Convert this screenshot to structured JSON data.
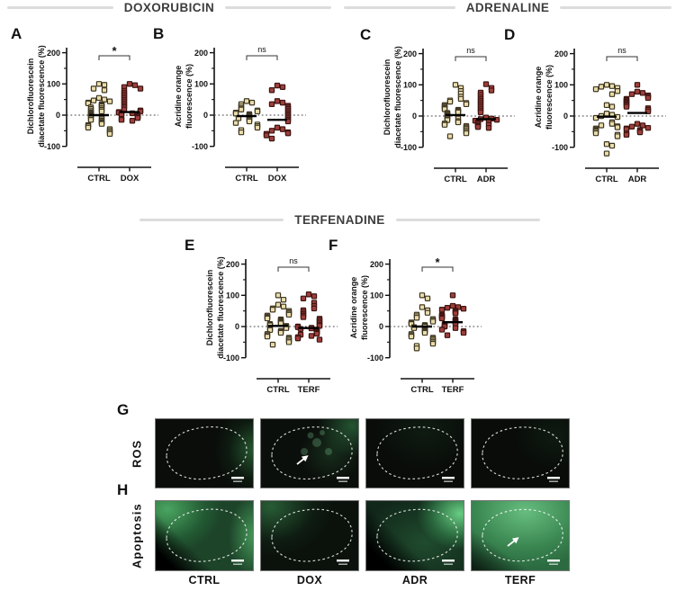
{
  "figure": {
    "sections": [
      {
        "title": "DOXORUBICIN"
      },
      {
        "title": "ADRENALINE"
      },
      {
        "title": "TERFENADINE"
      }
    ],
    "colors": {
      "ctrl_fill": "#e9dcab",
      "ctrl_stroke": "#3f3722",
      "treat_fill": "#9e3e3a",
      "treat_stroke": "#3f1512",
      "title_color": "#3d3d3d",
      "rule_color": "#dcdcdc",
      "mean_bar": "#000000"
    }
  },
  "chart_data": [
    {
      "type": "scatter",
      "panel_letter": "A",
      "section": "DOXORUBICIN",
      "ylabel_lines": [
        "Dichlorofluorescein",
        "diacetate fluorescence (%)"
      ],
      "yticks": [
        200,
        100,
        0,
        -100
      ],
      "minor_ticks": [
        150,
        50,
        -50
      ],
      "ylim": [
        -130,
        220
      ],
      "significance": "*",
      "groups": [
        {
          "label": "CTRL",
          "color_key": "ctrl",
          "mean": 0,
          "values": [
            100,
            97,
            85,
            80,
            55,
            50,
            47,
            44,
            40,
            38,
            35,
            33,
            30,
            28,
            25,
            22,
            20,
            17,
            15,
            12,
            10,
            8,
            5,
            3,
            0,
            -2,
            -5,
            -8,
            -10,
            -13,
            -15,
            -18,
            -22,
            -25,
            -28,
            -32,
            -35,
            -40,
            -45,
            -50,
            -55,
            -60
          ]
        },
        {
          "label": "DOX",
          "color_key": "treat",
          "mean": 10,
          "values": [
            100,
            96,
            90,
            85,
            78,
            72,
            66,
            60,
            54,
            48,
            42,
            36,
            30,
            25,
            18,
            15,
            12,
            10,
            8,
            6,
            4,
            2,
            0,
            -2,
            -4,
            -6,
            -9,
            -12,
            -15,
            -18
          ]
        }
      ]
    },
    {
      "type": "scatter",
      "panel_letter": "B",
      "section": "DOXORUBICIN",
      "ylabel_lines": [
        "Acridine orange",
        "fluorescence (%)"
      ],
      "yticks": [
        200,
        100,
        0,
        -100
      ],
      "minor_ticks": [
        150,
        50,
        -50
      ],
      "ylim": [
        -130,
        220
      ],
      "significance": "ns",
      "groups": [
        {
          "label": "CTRL",
          "color_key": "ctrl",
          "mean": -3,
          "values": [
            45,
            40,
            35,
            28,
            22,
            18,
            15,
            12,
            8,
            5,
            3,
            0,
            -2,
            -5,
            -8,
            -10,
            -13,
            -16,
            -20,
            -25,
            -30,
            -35,
            -40,
            -48,
            -55
          ]
        },
        {
          "label": "DOX",
          "color_key": "treat",
          "mean": -15,
          "values": [
            95,
            90,
            80,
            45,
            40,
            35,
            30,
            25,
            20,
            15,
            10,
            5,
            0,
            -5,
            -10,
            -15,
            -20,
            -40,
            -45,
            -50,
            -55,
            -58,
            -60,
            -65,
            -75
          ]
        }
      ]
    },
    {
      "type": "scatter",
      "panel_letter": "C",
      "section": "ADRENALINE",
      "ylabel_lines": [
        "Dichlorofluorescein",
        "diacetate fluorescence (%)"
      ],
      "yticks": [
        200,
        100,
        0,
        -100
      ],
      "minor_ticks": [
        150,
        50,
        -50
      ],
      "ylim": [
        -130,
        220
      ],
      "significance": "ns",
      "groups": [
        {
          "label": "CTRL",
          "color_key": "ctrl",
          "mean": 3,
          "values": [
            100,
            90,
            80,
            72,
            62,
            55,
            50,
            46,
            42,
            38,
            35,
            32,
            28,
            25,
            22,
            20,
            17,
            15,
            12,
            10,
            8,
            5,
            2,
            0,
            -3,
            -5,
            -8,
            -10,
            -13,
            -16,
            -20,
            -24,
            -28,
            -32,
            -36,
            -40,
            -45,
            -50,
            -55,
            -65
          ]
        },
        {
          "label": "ADR",
          "color_key": "treat",
          "mean": -10,
          "values": [
            102,
            90,
            82,
            75,
            68,
            60,
            54,
            48,
            42,
            36,
            30,
            24,
            18,
            12,
            -5,
            -8,
            -10,
            -12,
            -15,
            -18,
            -20,
            -22,
            -25,
            -28,
            -30,
            -32,
            -35,
            -38
          ]
        }
      ]
    },
    {
      "type": "scatter",
      "panel_letter": "D",
      "section": "ADRENALINE",
      "ylabel_lines": [
        "Acridine orange",
        "fluorescence (%)"
      ],
      "yticks": [
        200,
        100,
        0,
        -100
      ],
      "minor_ticks": [
        150,
        50,
        -50
      ],
      "ylim": [
        -130,
        220
      ],
      "significance": "ns",
      "groups": [
        {
          "label": "CTRL",
          "color_key": "ctrl",
          "mean": -2,
          "values": [
            100,
            96,
            94,
            90,
            86,
            80,
            70,
            35,
            30,
            8,
            4,
            0,
            -3,
            -6,
            -20,
            -25,
            -30,
            -33,
            -36,
            -40,
            -43,
            -46,
            -50,
            -55,
            -60,
            -65,
            -90,
            -95,
            -120
          ]
        },
        {
          "label": "ADR",
          "color_key": "treat",
          "mean": 10,
          "values": [
            100,
            78,
            74,
            70,
            66,
            62,
            58,
            55,
            52,
            48,
            45,
            42,
            38,
            35,
            30,
            25,
            20,
            15,
            -25,
            -30,
            -34,
            -38,
            -40,
            -42,
            -45,
            -48,
            -52,
            -56,
            -60
          ]
        }
      ]
    },
    {
      "type": "scatter",
      "panel_letter": "E",
      "section": "TERFENADINE",
      "ylabel_lines": [
        "Dichlorofluorescein",
        "diacetate fluorescence (%)"
      ],
      "yticks": [
        200,
        100,
        0,
        -100
      ],
      "minor_ticks": [
        150,
        50,
        -50
      ],
      "ylim": [
        -130,
        220
      ],
      "significance": "ns",
      "groups": [
        {
          "label": "CTRL",
          "color_key": "ctrl",
          "mean": 2,
          "values": [
            100,
            86,
            70,
            64,
            58,
            54,
            50,
            46,
            42,
            38,
            35,
            32,
            29,
            26,
            23,
            20,
            17,
            14,
            12,
            10,
            8,
            6,
            4,
            2,
            0,
            -2,
            -5,
            -8,
            -11,
            -14,
            -17,
            -20,
            -24,
            -28,
            -32,
            -36,
            -40,
            -45,
            -50,
            -58
          ]
        },
        {
          "label": "TERF",
          "color_key": "treat",
          "mean": -5,
          "values": [
            103,
            97,
            90,
            76,
            66,
            58,
            52,
            46,
            40,
            35,
            30,
            25,
            20,
            15,
            10,
            5,
            2,
            0,
            -2,
            -4,
            -6,
            -8,
            -10,
            -12,
            -14,
            -16,
            -18,
            -20,
            -23,
            -26,
            -30,
            -34,
            -38,
            -42
          ]
        }
      ]
    },
    {
      "type": "scatter",
      "panel_letter": "F",
      "section": "TERFENADINE",
      "ylabel_lines": [
        "Acridine orange",
        "fluorescence (%)"
      ],
      "yticks": [
        200,
        100,
        0,
        -100
      ],
      "minor_ticks": [
        150,
        50,
        -50
      ],
      "ylim": [
        -130,
        220
      ],
      "significance": "*",
      "groups": [
        {
          "label": "CTRL",
          "color_key": "ctrl",
          "mean": 0,
          "values": [
            100,
            90,
            62,
            52,
            44,
            38,
            33,
            28,
            24,
            20,
            16,
            13,
            10,
            8,
            5,
            3,
            0,
            -2,
            -5,
            -8,
            -11,
            -14,
            -17,
            -20,
            -24,
            -28,
            -32,
            -36,
            -40,
            -45,
            -50,
            -55,
            -62,
            -70
          ]
        },
        {
          "label": "TERF",
          "color_key": "treat",
          "mean": 14,
          "values": [
            100,
            66,
            62,
            60,
            57,
            54,
            51,
            48,
            45,
            42,
            38,
            35,
            32,
            29,
            26,
            23,
            20,
            17,
            14,
            12,
            10,
            8,
            5,
            2,
            0,
            -5,
            -10,
            -15,
            -20,
            -28
          ]
        }
      ]
    }
  ],
  "microscopy": {
    "row_g": {
      "letter": "G",
      "row_label": "ROS",
      "images": [
        {
          "condition": "CTRL",
          "variant": "ros-ctrl",
          "arrow": false,
          "spots": false
        },
        {
          "condition": "DOX",
          "variant": "ros-dox",
          "arrow": true,
          "spots": true
        },
        {
          "condition": "ADR",
          "variant": "ros-adr",
          "arrow": false,
          "spots": false
        },
        {
          "condition": "TERF",
          "variant": "ros-terf",
          "arrow": false,
          "spots": false
        }
      ]
    },
    "row_h": {
      "letter": "H",
      "row_label": "Apoptosis",
      "images": [
        {
          "condition": "CTRL",
          "variant": "apo-ctrl",
          "arrow": false,
          "spots": false
        },
        {
          "condition": "DOX",
          "variant": "apo-dox",
          "arrow": false,
          "spots": false
        },
        {
          "condition": "ADR",
          "variant": "apo-adr",
          "arrow": false,
          "spots": false
        },
        {
          "condition": "TERF",
          "variant": "apo-terf",
          "arrow": true,
          "spots": false
        }
      ]
    },
    "column_labels": [
      "CTRL",
      "DOX",
      "ADR",
      "TERF"
    ]
  }
}
